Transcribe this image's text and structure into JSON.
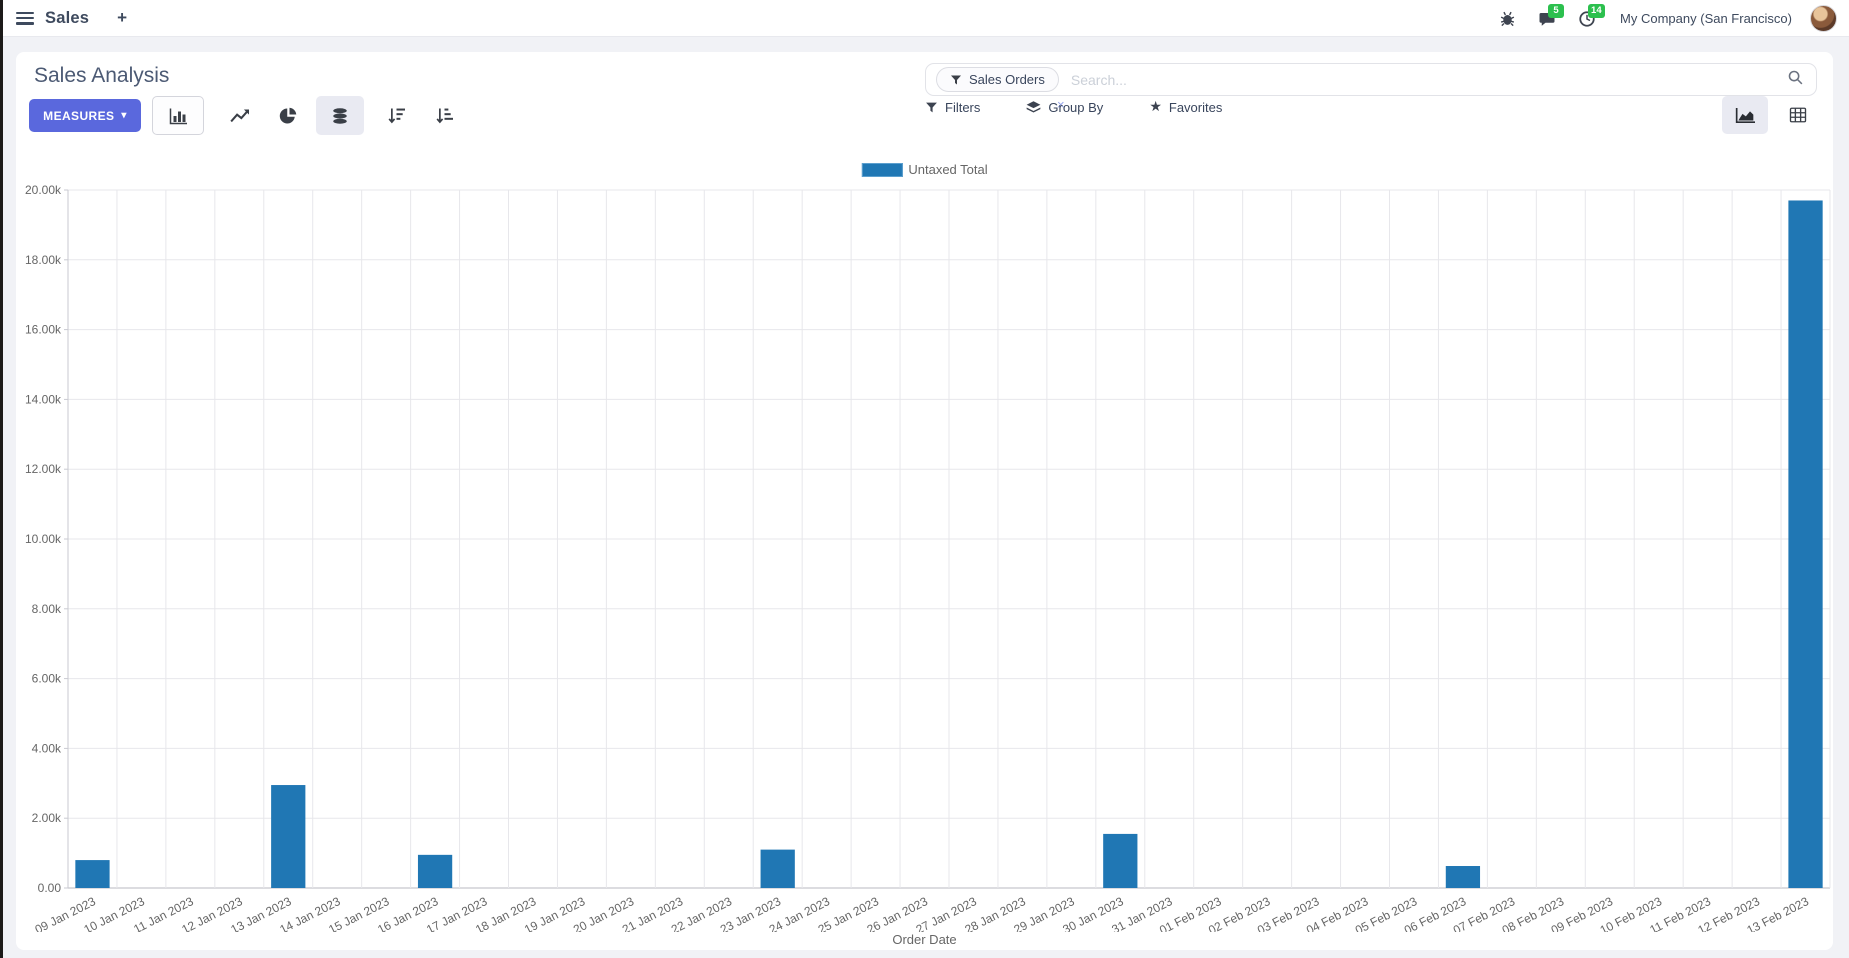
{
  "navbar": {
    "app_name": "Sales",
    "plus_label": "+",
    "messages_badge": "5",
    "activities_badge": "14",
    "company": "My Company (San Francisco)"
  },
  "control_panel": {
    "title": "Sales Analysis",
    "measures_label": "MEASURES",
    "caret": "▾",
    "search": {
      "facet_label": "Sales Orders",
      "facet_remove": "×",
      "placeholder": "Search..."
    },
    "filters_label": "Filters",
    "group_by_label": "Group By",
    "favorites_label": "Favorites",
    "star_glyph": "★"
  },
  "chart_data": {
    "type": "bar",
    "title": "",
    "xlabel": "Order Date",
    "ylabel": "",
    "ylim": [
      0,
      20000
    ],
    "ytick_step": 2000,
    "ytick_labels": [
      "0.00",
      "2.00k",
      "4.00k",
      "6.00k",
      "8.00k",
      "10.00k",
      "12.00k",
      "14.00k",
      "16.00k",
      "18.00k",
      "20.00k"
    ],
    "grid": true,
    "legend_position": "top",
    "bar_color": "#2077b4",
    "categories": [
      "09 Jan 2023",
      "10 Jan 2023",
      "11 Jan 2023",
      "12 Jan 2023",
      "13 Jan 2023",
      "14 Jan 2023",
      "15 Jan 2023",
      "16 Jan 2023",
      "17 Jan 2023",
      "18 Jan 2023",
      "19 Jan 2023",
      "20 Jan 2023",
      "21 Jan 2023",
      "22 Jan 2023",
      "23 Jan 2023",
      "24 Jan 2023",
      "25 Jan 2023",
      "26 Jan 2023",
      "27 Jan 2023",
      "28 Jan 2023",
      "29 Jan 2023",
      "30 Jan 2023",
      "31 Jan 2023",
      "01 Feb 2023",
      "02 Feb 2023",
      "03 Feb 2023",
      "04 Feb 2023",
      "05 Feb 2023",
      "06 Feb 2023",
      "07 Feb 2023",
      "08 Feb 2023",
      "09 Feb 2023",
      "10 Feb 2023",
      "11 Feb 2023",
      "12 Feb 2023",
      "13 Feb 2023"
    ],
    "series": [
      {
        "name": "Untaxed Total",
        "values": [
          800,
          0,
          0,
          0,
          2950,
          0,
          0,
          950,
          0,
          0,
          0,
          0,
          0,
          0,
          1100,
          0,
          0,
          0,
          0,
          0,
          0,
          1550,
          0,
          0,
          0,
          0,
          0,
          0,
          630,
          0,
          0,
          0,
          0,
          0,
          0,
          19700
        ]
      }
    ]
  }
}
